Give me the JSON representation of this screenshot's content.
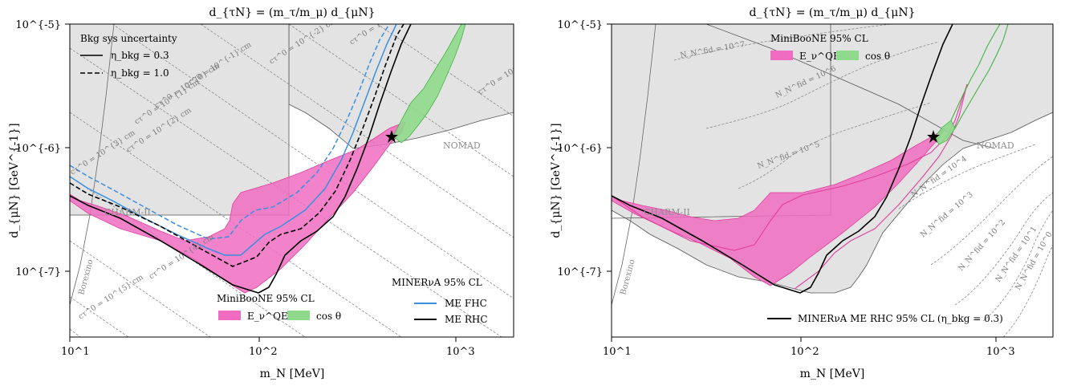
{
  "figure": {
    "panels": [
      {
        "title": "d_{τN} = (m_τ/m_μ) d_{μN}",
        "xlabel": "m_N [MeV]",
        "ylabel": "d_{μN} [GeV^{-1}]",
        "x_ticks": [
          "10^1",
          "10^2",
          "10^3"
        ],
        "y_ticks": [
          "10^{-5}",
          "10^{-6}",
          "10^{-7}"
        ],
        "excluded_regions": [
          "NOMAD",
          "CHARM-II",
          "Borexino"
        ],
        "legend_bkg": {
          "title": "Bkg sys uncertainty",
          "solid": "η_bkg = 0.3",
          "dashed": "η_bkg = 1.0"
        },
        "legend_miniboone": {
          "title": "MiniBooNE 95% CL",
          "eqe": "E_ν^QE",
          "cos": "cos θ"
        },
        "legend_minerva": {
          "title": "MINERνA 95% CL",
          "fhc": "ME FHC",
          "rhc": "ME RHC"
        },
        "contour_labels": [
          "cτ^0 = 10^{-4} cm",
          "cτ^0 = 10^{-3} cm",
          "cτ^0 = 10^{-2} cm",
          "cτ^0 = 10^{-1} cm",
          "cτ^0 = 10^{0} cm",
          "cτ^0 = 10^{1} cm",
          "cτ^0 = 10^{2} cm",
          "cτ^0 = 10^{3} cm",
          "cτ^0 = 10^{4} cm",
          "cτ^0 = 10^{5} cm"
        ]
      },
      {
        "title": "d_{τN} = (m_τ/m_μ) d_{μN}",
        "xlabel": "m_N [MeV]",
        "ylabel": "d_{μN} [GeV^{-1}]",
        "x_ticks": [
          "10^1",
          "10^2",
          "10^3"
        ],
        "y_ticks": [
          "10^{-5}",
          "10^{-6}",
          "10^{-7}"
        ],
        "excluded_regions": [
          "NOMAD",
          "CHARM-II",
          "Borexino"
        ],
        "legend_miniboone": {
          "title": "MiniBooNE 95% CL",
          "eqe": "E_ν^QE",
          "cos": "cos θ"
        },
        "legend_minerva": {
          "rhc": "MINERνA ME RHC 95% CL (η_bkg = 0.3)"
        },
        "contour_labels": [
          "N_N^fid = 10^7",
          "N_N^fid = 10^6",
          "N_N^fid = 10^5",
          "N_N^fid = 10^4",
          "N_N^fid = 10^3",
          "N_N^fid = 10^2",
          "N_N^fid = 10^1",
          "N_N^fid = 10^0"
        ]
      }
    ]
  },
  "colors": {
    "pink": "#f06cc1",
    "green": "#8ed98c",
    "blue": "#3a8fe0",
    "gray_region": "#e3e3e3"
  },
  "chart_data": [
    {
      "type": "line",
      "title": "d_{τN} = (m_τ/m_μ) d_{μN}",
      "xlabel": "m_N [MeV]",
      "ylabel": "d_{μN} [GeV^{-1}]",
      "xscale": "log",
      "yscale": "log",
      "xlim": [
        10,
        2000
      ],
      "ylim": [
        3e-08,
        1e-05
      ],
      "star": {
        "x": 470,
        "y": 1.25e-06
      },
      "series": [
        {
          "name": "ME FHC, η_bkg = 0.3",
          "x": [
            10,
            15,
            20,
            30,
            50,
            80,
            100,
            130,
            200,
            300,
            400,
            500,
            600
          ],
          "y": [
            6.4e-07,
            4.6e-07,
            3.6e-07,
            2.6e-07,
            1.7e-07,
            1.2e-07,
            1.3e-07,
            1.8e-07,
            3.5e-07,
            8e-07,
            2e-06,
            4e-06,
            9e-06
          ]
        },
        {
          "name": "ME FHC, η_bkg = 1.0",
          "x": [
            10,
            15,
            20,
            30,
            50,
            70,
            100,
            150,
            200,
            300,
            400,
            500,
            600
          ],
          "y": [
            7.2e-07,
            5.4e-07,
            4.3e-07,
            3.1e-07,
            2.1e-07,
            1.7e-07,
            2e-07,
            3.5e-07,
            5e-07,
            1e-06,
            2.2e-06,
            5e-06,
            1e-05
          ]
        },
        {
          "name": "ME RHC, η_bkg = 0.3",
          "x": [
            10,
            15,
            20,
            30,
            50,
            80,
            100,
            130,
            200,
            300,
            400,
            500,
            600,
            700
          ],
          "y": [
            4e-07,
            3e-07,
            2.3e-07,
            1.6e-07,
            1e-07,
            7e-08,
            6.9e-08,
            9e-08,
            1.9e-07,
            4e-07,
            8e-07,
            2e-06,
            4.5e-06,
            9e-06
          ]
        },
        {
          "name": "ME RHC, η_bkg = 1.0",
          "x": [
            10,
            15,
            20,
            30,
            50,
            70,
            100,
            150,
            200,
            300,
            400,
            500,
            600,
            700
          ],
          "y": [
            5.1e-07,
            3.9e-07,
            3.1e-07,
            2.2e-07,
            1.4e-07,
            1e-07,
            1e-07,
            1.9e-07,
            3e-07,
            6e-07,
            1.1e-06,
            2.5e-06,
            5e-06,
            1e-05
          ]
        }
      ],
      "bands": [
        {
          "name": "MiniBooNE E_ν^QE",
          "x": [
            10,
            20,
            30,
            40,
            50,
            70,
            100,
            150,
            200,
            300,
            400,
            500
          ],
          "lower": [
            2.3e-07,
            1.6e-07,
            1.2e-07,
            9.4e-08,
            8.2e-08,
            7.8e-08,
            1.05e-07,
            1.55e-07,
            2.2e-07,
            3.6e-07,
            6.5e-07,
            1.25e-06
          ],
          "upper": [
            3.7e-07,
            2.6e-07,
            2e-07,
            1.7e-07,
            1.5e-07,
            1.4e-07,
            3.6e-07,
            3.9e-07,
            4.2e-07,
            6.5e-07,
            1e-06,
            2e-06
          ]
        },
        {
          "name": "MiniBooNE cos θ",
          "x": [
            480,
            520,
            560,
            600,
            650,
            700,
            750
          ],
          "lower": [
            1.1e-06,
            1.5e-06,
            2e-06,
            2.8e-06,
            4e-06,
            5.5e-06,
            7.5e-06
          ],
          "upper": [
            1.4e-06,
            2e-06,
            2.8e-06,
            4e-06,
            5.8e-06,
            8e-06,
            1e-05
          ]
        }
      ]
    },
    {
      "type": "line",
      "title": "d_{τN} = (m_τ/m_μ) d_{μN}",
      "xlabel": "m_N [MeV]",
      "ylabel": "d_{μN} [GeV^{-1}]",
      "xscale": "log",
      "yscale": "log",
      "xlim": [
        10,
        2000
      ],
      "ylim": [
        3e-08,
        1e-05
      ],
      "star": {
        "x": 470,
        "y": 1.25e-06
      },
      "series": [
        {
          "name": "MINERνA ME RHC 95% CL (η_bkg = 0.3)",
          "x": [
            10,
            15,
            20,
            30,
            50,
            80,
            100,
            130,
            200,
            300,
            400,
            500,
            600,
            700
          ],
          "y": [
            4e-07,
            3e-07,
            2.3e-07,
            1.6e-07,
            1e-07,
            7e-08,
            6.9e-08,
            9e-08,
            1.9e-07,
            4e-07,
            8e-07,
            2e-06,
            4.5e-06,
            9e-06
          ]
        }
      ],
      "bands": [
        {
          "name": "MiniBooNE E_ν^QE",
          "x": [
            10,
            20,
            30,
            40,
            50,
            70,
            100,
            150,
            200,
            300,
            400,
            500
          ],
          "lower": [
            2.3e-07,
            1.6e-07,
            1.2e-07,
            9.4e-08,
            8.2e-08,
            7.8e-08,
            1.05e-07,
            1.55e-07,
            2.2e-07,
            3.6e-07,
            6.5e-07,
            1.25e-06
          ],
          "upper": [
            3.7e-07,
            2.6e-07,
            2e-07,
            1.7e-07,
            1.5e-07,
            1.4e-07,
            3.6e-07,
            3.9e-07,
            4.2e-07,
            6.5e-07,
            1e-06,
            2e-06
          ]
        },
        {
          "name": "MiniBooNE cos θ",
          "x": [
            480,
            520,
            560,
            600,
            650,
            700,
            750
          ],
          "lower": [
            1.1e-06,
            1.5e-06,
            2e-06,
            2.8e-06,
            4e-06,
            5.5e-06,
            7.5e-06
          ],
          "upper": [
            1.4e-06,
            2e-06,
            2.8e-06,
            4e-06,
            5.8e-06,
            8e-06,
            1e-05
          ]
        }
      ]
    }
  ]
}
